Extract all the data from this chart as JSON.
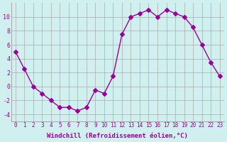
{
  "x": [
    0,
    1,
    2,
    3,
    4,
    5,
    6,
    7,
    8,
    9,
    10,
    11,
    12,
    13,
    14,
    15,
    16,
    17,
    18,
    19,
    20,
    21,
    22,
    23
  ],
  "y": [
    5,
    2.5,
    0,
    -1,
    -2,
    -3,
    -3,
    -3.5,
    -3,
    -0.5,
    -1,
    1.5,
    7.5,
    10,
    10.5,
    11,
    10,
    11,
    10.5,
    10,
    8.5,
    6,
    3.5,
    1.5
  ],
  "line_color": "#990099",
  "marker": "D",
  "marker_size": 3,
  "bg_color": "#d0f0f0",
  "grid_color": "#aaaaaa",
  "xlabel": "Windchill (Refroidissement éolien,°C)",
  "xlim": [
    -0.5,
    23.5
  ],
  "ylim": [
    -5,
    12
  ],
  "yticks": [
    -4,
    -2,
    0,
    2,
    4,
    6,
    8,
    10
  ],
  "xticks": [
    0,
    1,
    2,
    3,
    4,
    5,
    6,
    7,
    8,
    9,
    10,
    11,
    12,
    13,
    14,
    15,
    16,
    17,
    18,
    19,
    20,
    21,
    22,
    23
  ],
  "label_color": "#990099",
  "tick_color": "#990099"
}
